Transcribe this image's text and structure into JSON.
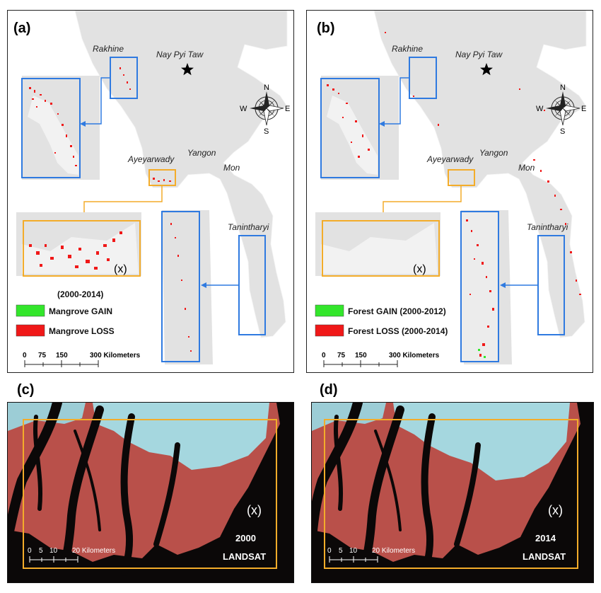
{
  "panels": {
    "a": {
      "label": "(a)",
      "places": {
        "rakhine": "Rakhine",
        "capital": "Nay Pyi Taw",
        "ayeyarwady": "Ayeyarwady",
        "yangon": "Yangon",
        "mon": "Mon",
        "tanintharyi": "Tanintharyi"
      },
      "inset_tag": "(x)",
      "period": "(2000-2014)",
      "legend": [
        {
          "label": "Mangrove GAIN",
          "color": "#33e62b"
        },
        {
          "label": "Mangrove LOSS",
          "color": "#f01818"
        }
      ],
      "scale": {
        "ticks": [
          "0",
          "75",
          "150",
          "300 Kilometers"
        ]
      },
      "compass": {
        "n": "N",
        "s": "S",
        "e": "E",
        "w": "W"
      }
    },
    "b": {
      "label": "(b)",
      "places": {
        "rakhine": "Rakhine",
        "capital": "Nay Pyi Taw",
        "ayeyarwady": "Ayeyarwady",
        "yangon": "Yangon",
        "mon": "Mon",
        "tanintharyi": "Tanintharyi"
      },
      "inset_tag": "(x)",
      "legend": [
        {
          "label": "Forest GAIN (2000-2012)",
          "color": "#33e62b"
        },
        {
          "label": "Forest LOSS (2000-2014)",
          "color": "#f01818"
        }
      ],
      "scale": {
        "ticks": [
          "0",
          "75",
          "150",
          "300 Kilometers"
        ]
      },
      "compass": {
        "n": "N",
        "s": "S",
        "e": "E",
        "w": "W"
      }
    },
    "c": {
      "label": "(c)",
      "inset_tag": "(x)",
      "year": "2000",
      "sensor": "LANDSAT",
      "scale": {
        "ticks": [
          "0",
          "5",
          "10",
          "20 Kilometers"
        ]
      }
    },
    "d": {
      "label": "(d)",
      "inset_tag": "(x)",
      "year": "2014",
      "sensor": "LANDSAT",
      "scale": {
        "ticks": [
          "0",
          "5",
          "10",
          "20 Kilometers"
        ]
      }
    }
  },
  "colors": {
    "land": "#e2e2e2",
    "inset_blue": "#2f7ae0",
    "inset_orange": "#f3ac2a",
    "loss": "#f01818",
    "gain": "#33e62b",
    "sat_land": "#c0524a",
    "sat_urban": "#a5d7df",
    "sat_water": "#0b0808"
  }
}
